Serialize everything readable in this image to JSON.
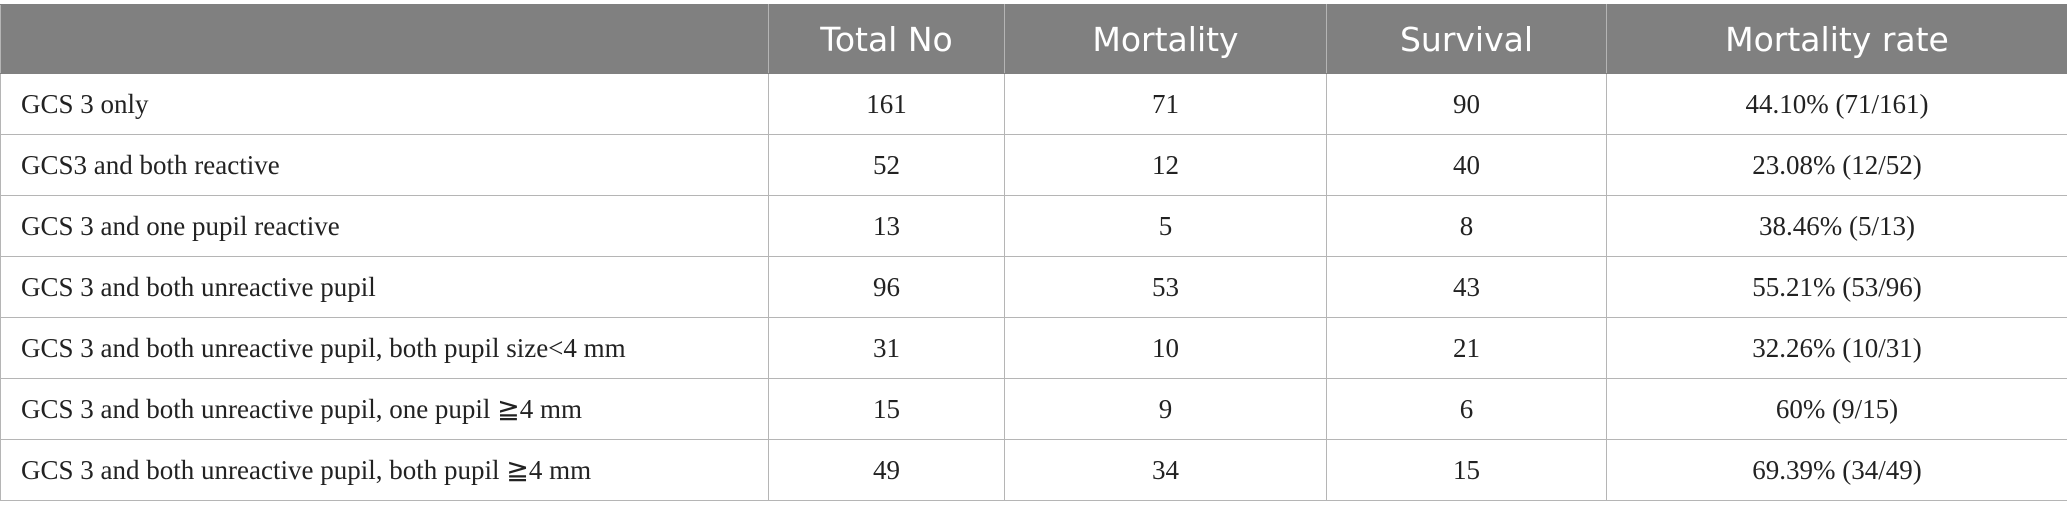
{
  "table": {
    "headers": [
      "",
      "Total No",
      "Mortality",
      "Survival",
      "Mortality rate"
    ],
    "rows": [
      [
        "GCS 3 only",
        "161",
        "71",
        "90",
        "44.10% (71/161)"
      ],
      [
        "GCS3 and both reactive",
        "52",
        "12",
        "40",
        "23.08% (12/52)"
      ],
      [
        "GCS 3 and one pupil reactive",
        "13",
        "5",
        "8",
        "38.46% (5/13)"
      ],
      [
        "GCS 3 and both unreactive pupil",
        "96",
        "53",
        "43",
        "55.21% (53/96)"
      ],
      [
        "GCS 3 and both unreactive pupil, both pupil size<4 mm",
        "31",
        "10",
        "21",
        "32.26% (10/31)"
      ],
      [
        "GCS 3 and both unreactive pupil, one pupil ≧4 mm",
        "15",
        "9",
        "6",
        "60% (9/15)"
      ],
      [
        "GCS 3 and both unreactive pupil, both pupil ≧4 mm",
        "49",
        "34",
        "15",
        "69.39% (34/49)"
      ]
    ]
  },
  "colors": {
    "header_background": "#808080",
    "header_text": "#ffffff",
    "grid_line": "#b5b5b5"
  }
}
